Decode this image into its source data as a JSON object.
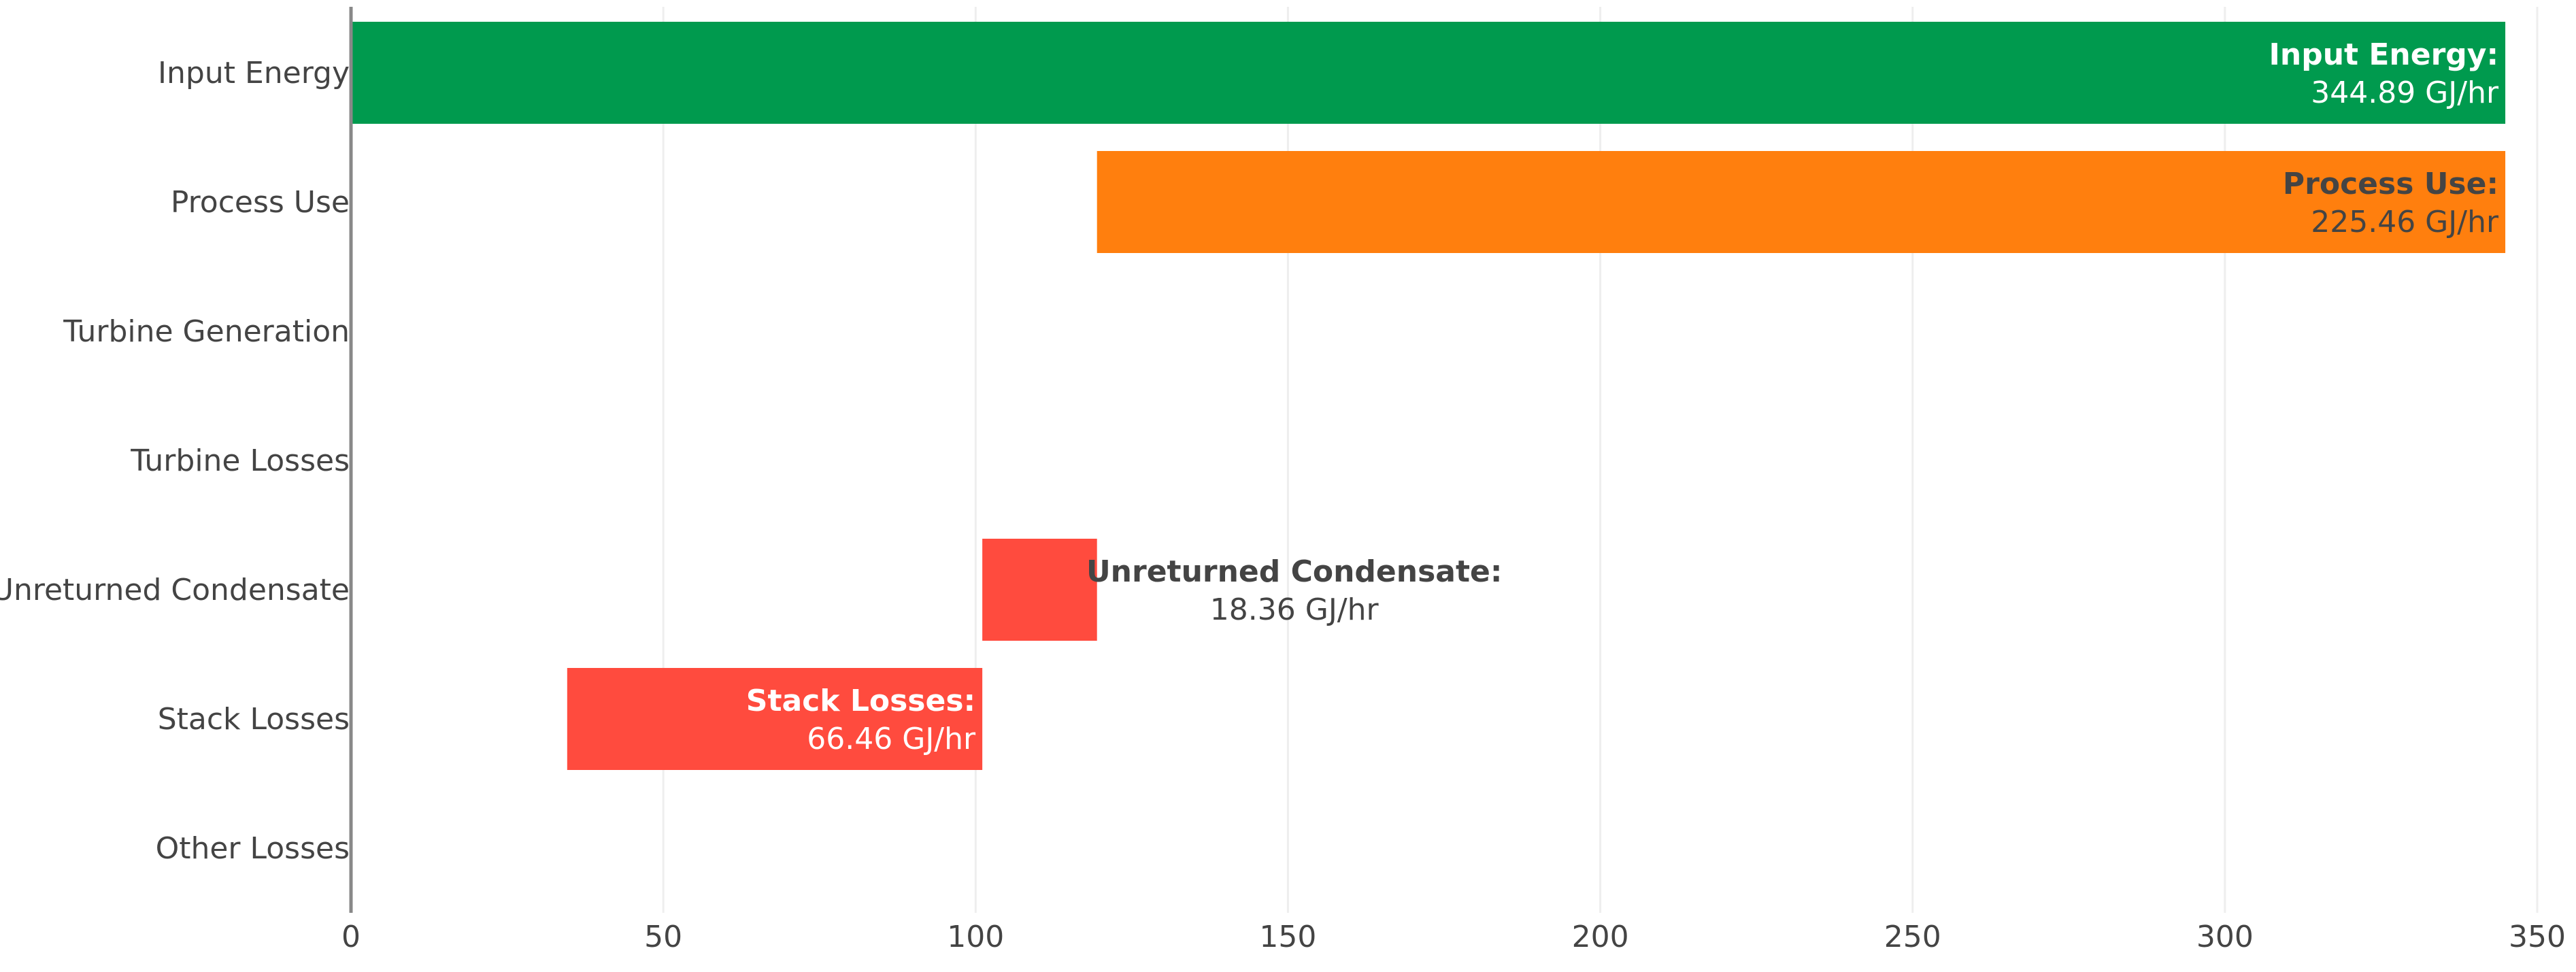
{
  "chart_data": {
    "type": "bar",
    "orientation": "horizontal",
    "subtype": "waterfall",
    "categories": [
      "Input Energy",
      "Process Use",
      "Turbine Generation",
      "Turbine Losses",
      "Unreturned Condensate",
      "Stack Losses",
      "Other Losses"
    ],
    "bars": [
      {
        "category": "Input Energy",
        "base": 0,
        "end": 344.89,
        "value": 344.89,
        "color": "#009a4e",
        "label_title": "Input Energy:",
        "label_value": "344.89 GJ/hr",
        "label_color": "#ffffff",
        "label_position": "inside-end"
      },
      {
        "category": "Process Use",
        "base": 119.43,
        "end": 344.89,
        "value": 225.46,
        "color": "#ff7f0e",
        "label_title": "Process Use:",
        "label_value": "225.46 GJ/hr",
        "label_color": "#444444",
        "label_position": "inside-end"
      },
      {
        "category": "Unreturned Condensate",
        "base": 101.07,
        "end": 119.43,
        "value": 18.36,
        "color": "#ff4b3e",
        "label_title": "Unreturned Condensate:",
        "label_value": "18.36 GJ/hr",
        "label_color": "#444444",
        "label_position": "outside"
      },
      {
        "category": "Stack Losses",
        "base": 34.61,
        "end": 101.07,
        "value": 66.46,
        "color": "#ff4b3e",
        "label_title": "Stack Losses:",
        "label_value": "66.46 GJ/hr",
        "label_color": "#ffffff",
        "label_position": "inside-end"
      }
    ],
    "x_ticks": [
      "0",
      "50",
      "100",
      "150",
      "200",
      "250",
      "300",
      "350"
    ],
    "xlim": [
      0,
      350
    ],
    "grid": true,
    "title": "",
    "xlabel": "",
    "ylabel": ""
  }
}
